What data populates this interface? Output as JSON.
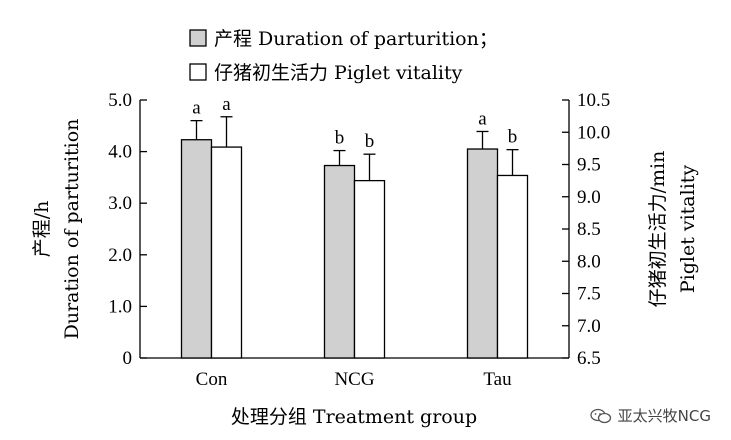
{
  "chart_data": {
    "type": "bar",
    "categories": [
      "Con",
      "NCG",
      "Tau"
    ],
    "xlabel": "处理分组 Treatment group",
    "ylabel_left_line1": "产程/h",
    "ylabel_left_line2": "Duration of parturition",
    "ylabel_right_line1": "仔猪初生活力/min",
    "ylabel_right_line2": "Piglet vitality",
    "ylim_left": [
      0,
      5.0
    ],
    "ylim_right": [
      6.5,
      10.5
    ],
    "yticks_left": [
      "0",
      "1.0",
      "2.0",
      "3.0",
      "4.0",
      "5.0"
    ],
    "yticks_right": [
      "6.5",
      "7.0",
      "7.5",
      "8.0",
      "8.5",
      "9.0",
      "9.5",
      "10.0",
      "10.5"
    ],
    "series": [
      {
        "name": "产程 Duration of parturition；",
        "axis": "left",
        "fill": "#d0d0d0",
        "values": [
          4.23,
          3.73,
          4.05
        ],
        "errors": [
          0.37,
          0.29,
          0.34
        ],
        "labels": [
          "a",
          "b",
          "a"
        ]
      },
      {
        "name": "仔猪初生活力 Piglet vitality",
        "axis": "right",
        "fill": "#ffffff",
        "values": [
          9.77,
          9.25,
          9.33
        ],
        "errors": [
          0.47,
          0.41,
          0.4
        ],
        "labels": [
          "a",
          "b",
          "b"
        ]
      }
    ]
  },
  "watermark": {
    "text": "亚太兴牧NCG",
    "icon": "wechat-icon"
  }
}
